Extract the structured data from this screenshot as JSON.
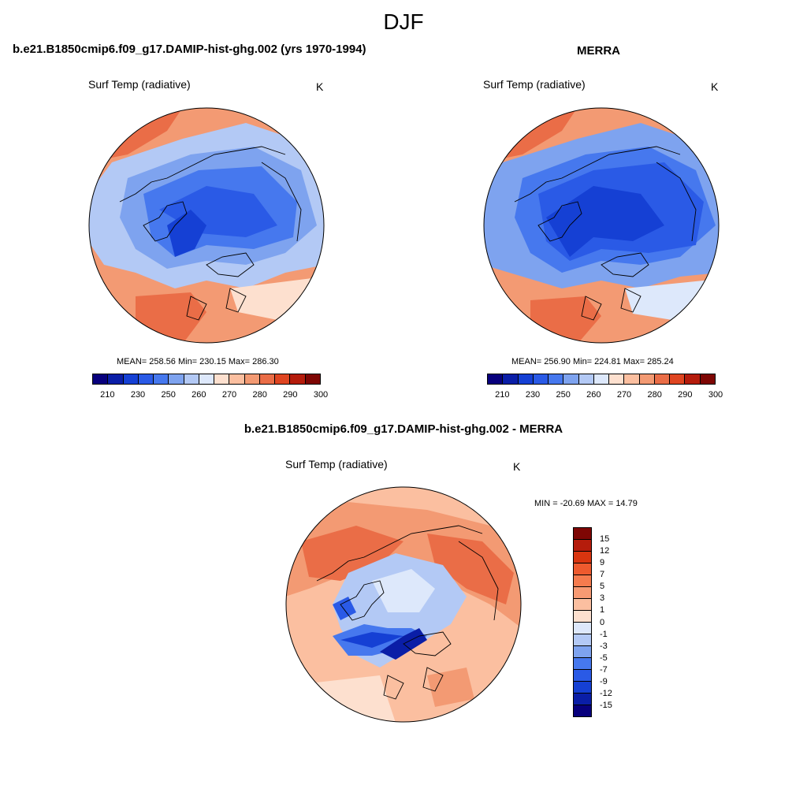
{
  "title": "DJF",
  "colors": {
    "abs_scale": [
      "#08007d",
      "#0a1ea7",
      "#1540d4",
      "#2a5ae6",
      "#4678ee",
      "#7ea3ef",
      "#b3c9f5",
      "#dde8fb",
      "#fde0cf",
      "#fbbfa0",
      "#f39a73",
      "#ea6d47",
      "#df4521",
      "#b51c0c",
      "#7e0604"
    ],
    "diff_scale": [
      "#7e0604",
      "#b51c0c",
      "#d9350f",
      "#ee5a2e",
      "#f57b4e",
      "#f79a73",
      "#fbbfa0",
      "#fde0cf",
      "#dde8fb",
      "#b3c9f5",
      "#7ea3ef",
      "#4678ee",
      "#2a5ae6",
      "#1540d4",
      "#0a1ea7",
      "#08007d"
    ],
    "land_outline": "#000000"
  },
  "panels": {
    "model": {
      "title": "b.e21.B1850cmip6.f09_g17.DAMIP-hist-ghg.002 (yrs 1970-1994)",
      "variable": "Surf Temp (radiative)",
      "units": "K",
      "stats": "MEAN= 258.56  Min= 230.15  Max= 286.30",
      "colorbar_ticks": [
        "210",
        "230",
        "250",
        "260",
        "270",
        "280",
        "290",
        "300"
      ]
    },
    "obs": {
      "title": "MERRA",
      "variable": "Surf Temp (radiative)",
      "units": "K",
      "stats": "MEAN= 256.90  Min= 224.81  Max= 285.24",
      "colorbar_ticks": [
        "210",
        "230",
        "250",
        "260",
        "270",
        "280",
        "290",
        "300"
      ]
    },
    "diff": {
      "title": "b.e21.B1850cmip6.f09_g17.DAMIP-hist-ghg.002 - MERRA",
      "variable": "Surf Temp (radiative)",
      "units": "K",
      "stats": "MIN = -20.69 MAX =  14.79",
      "colorbar_ticks": [
        "15",
        "12",
        "9",
        "7",
        "5",
        "3",
        "1",
        "0",
        "-1",
        "-3",
        "-5",
        "-7",
        "-9",
        "-12",
        "-15"
      ]
    }
  },
  "chart_data": [
    {
      "type": "heatmap",
      "projection": "north polar stereographic",
      "title": "b.e21.B1850cmip6.f09_g17.DAMIP-hist-ghg.002 (yrs 1970-1994)",
      "field": "Surf Temp (radiative)",
      "units": "K",
      "mean": 258.56,
      "min": 230.15,
      "max": 286.3,
      "levels": [
        210,
        220,
        230,
        240,
        250,
        255,
        260,
        265,
        270,
        275,
        280,
        285,
        290,
        295,
        300
      ]
    },
    {
      "type": "heatmap",
      "projection": "north polar stereographic",
      "title": "MERRA",
      "field": "Surf Temp (radiative)",
      "units": "K",
      "mean": 256.9,
      "min": 224.81,
      "max": 285.24,
      "levels": [
        210,
        220,
        230,
        240,
        250,
        255,
        260,
        265,
        270,
        275,
        280,
        285,
        290,
        295,
        300
      ]
    },
    {
      "type": "heatmap",
      "projection": "north polar stereographic",
      "title": "b.e21.B1850cmip6.f09_g17.DAMIP-hist-ghg.002 - MERRA",
      "field": "Surf Temp (radiative)",
      "units": "K",
      "min": -20.69,
      "max": 14.79,
      "levels": [
        -15,
        -12,
        -9,
        -7,
        -5,
        -3,
        -1,
        0,
        1,
        3,
        5,
        7,
        9,
        12,
        15
      ]
    }
  ]
}
